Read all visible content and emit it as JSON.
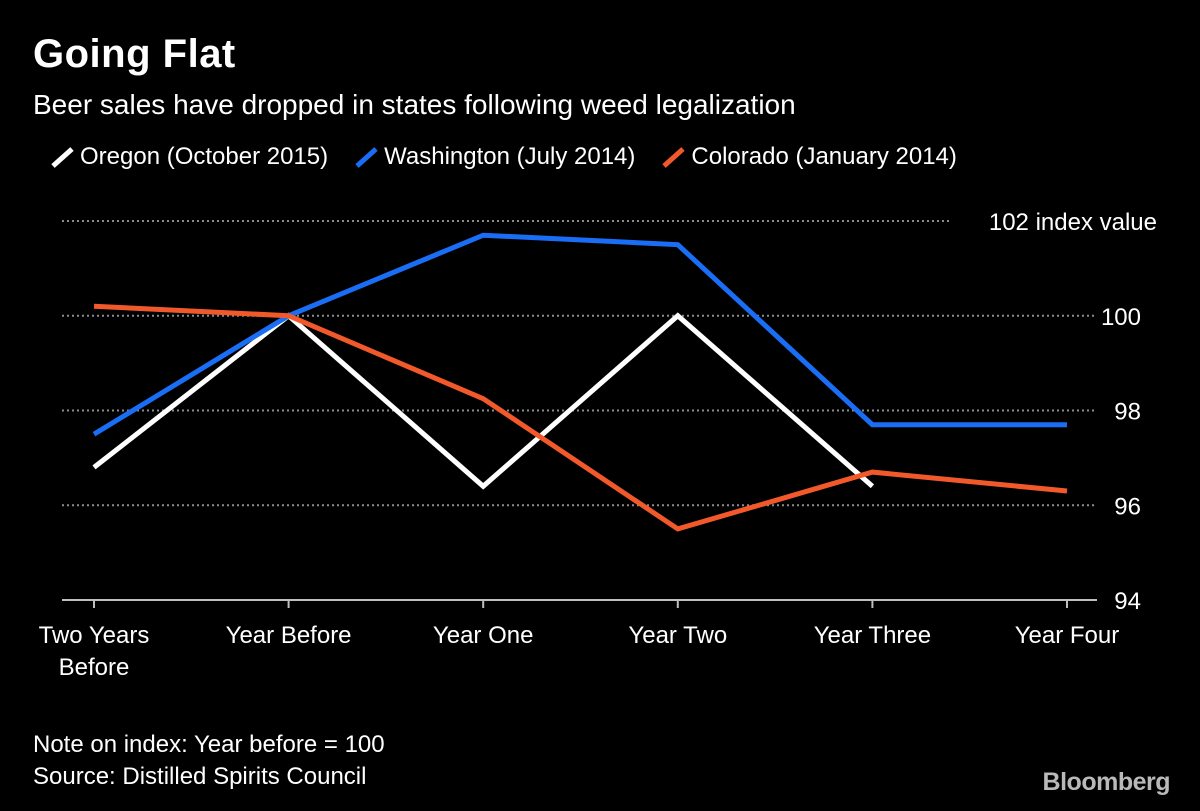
{
  "chart_data": {
    "type": "line",
    "title": "Going Flat",
    "subtitle": "Beer sales have dropped in states following weed legalization",
    "categories": [
      "Two Years\nBefore",
      "Year Before",
      "Year One",
      "Year Two",
      "Year Three",
      "Year Four"
    ],
    "ylim": [
      94,
      102
    ],
    "yticks": [
      94,
      96,
      98,
      100,
      102
    ],
    "ytick_labels": [
      "94",
      "96",
      "98",
      "100",
      "102 index value"
    ],
    "grid": true,
    "legend_position": "top",
    "series": [
      {
        "name": "Oregon (October 2015)",
        "color": "#ffffff",
        "values": [
          96.8,
          100.0,
          96.4,
          100.0,
          96.4,
          null
        ]
      },
      {
        "name": "Washington (July 2014)",
        "color": "#1a6ef5",
        "values": [
          97.5,
          100.0,
          101.7,
          101.5,
          97.7,
          97.7
        ]
      },
      {
        "name": "Colorado (January 2014)",
        "color": "#f2592a",
        "values": [
          100.2,
          100.0,
          98.25,
          95.5,
          96.7,
          96.3
        ]
      }
    ],
    "notes": [
      "Note on index: Year before = 100",
      "Source: Distilled Spirits Council"
    ]
  },
  "brand": "Bloomberg"
}
